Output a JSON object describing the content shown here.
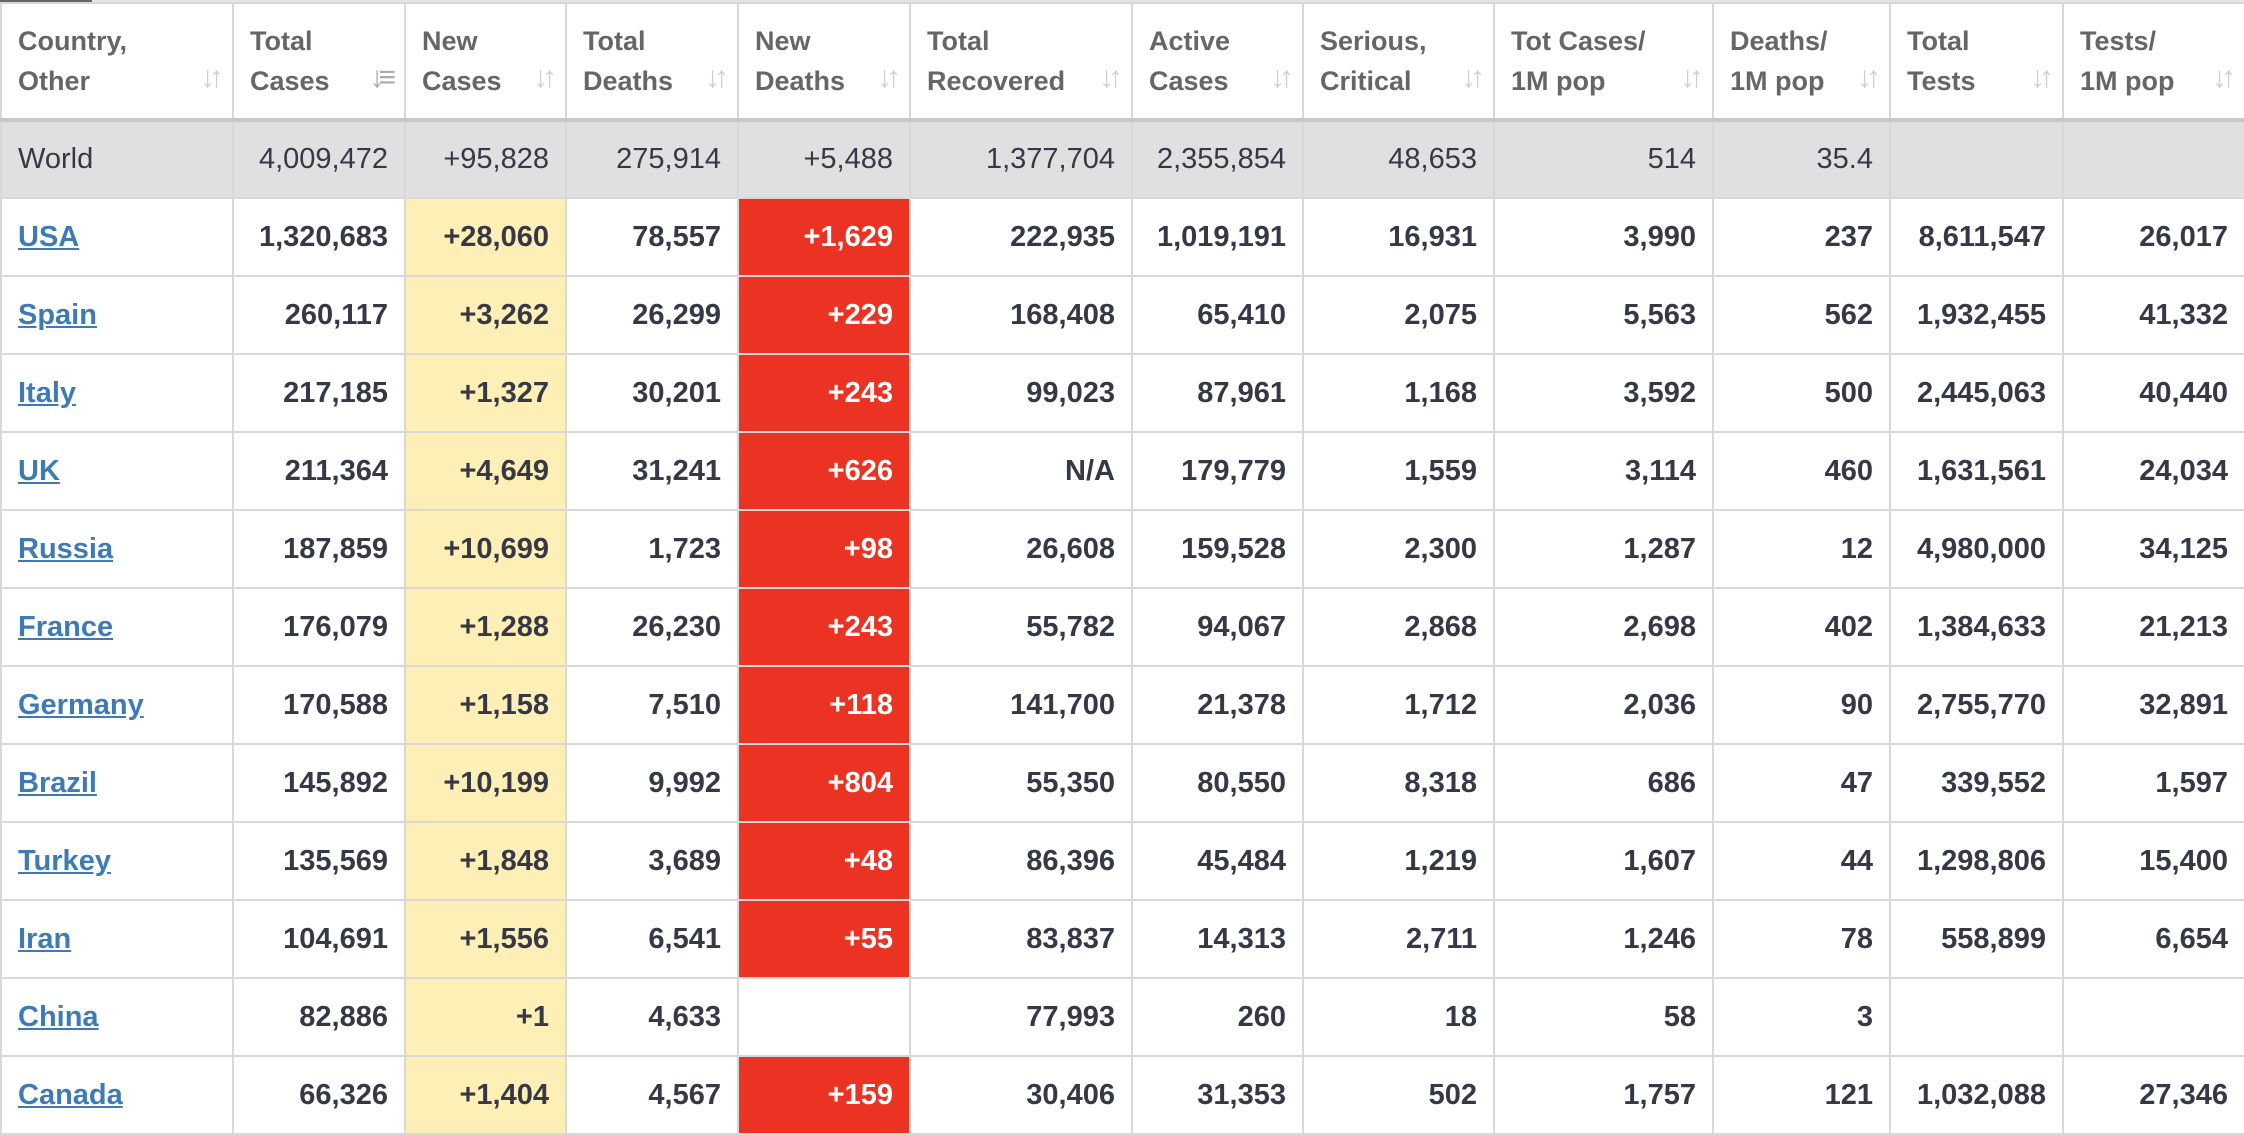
{
  "colors": {
    "new_cases_bg": "#fdefb5",
    "new_deaths_bg": "#ea3323",
    "link": "#3e7bb6",
    "world_bg": "#e0e0e0"
  },
  "headers": [
    {
      "l1": "Country,",
      "l2": "Other"
    },
    {
      "l1": "Total",
      "l2": "Cases",
      "sorted": true
    },
    {
      "l1": "New",
      "l2": "Cases"
    },
    {
      "l1": "Total",
      "l2": "Deaths"
    },
    {
      "l1": "New",
      "l2": "Deaths"
    },
    {
      "l1": "Total",
      "l2": "Recovered"
    },
    {
      "l1": "Active",
      "l2": "Cases"
    },
    {
      "l1": "Serious,",
      "l2": "Critical"
    },
    {
      "l1": "Tot Cases/",
      "l2": "1M pop"
    },
    {
      "l1": "Deaths/",
      "l2": "1M pop"
    },
    {
      "l1": "Total",
      "l2": "Tests"
    },
    {
      "l1": "Tests/",
      "l2": "1M pop"
    }
  ],
  "world": [
    "World",
    "4,009,472",
    "+95,828",
    "275,914",
    "+5,488",
    "1,377,704",
    "2,355,854",
    "48,653",
    "514",
    "35.4",
    "",
    ""
  ],
  "rows": [
    [
      "USA",
      "1,320,683",
      "+28,060",
      "78,557",
      "+1,629",
      "222,935",
      "1,019,191",
      "16,931",
      "3,990",
      "237",
      "8,611,547",
      "26,017"
    ],
    [
      "Spain",
      "260,117",
      "+3,262",
      "26,299",
      "+229",
      "168,408",
      "65,410",
      "2,075",
      "5,563",
      "562",
      "1,932,455",
      "41,332"
    ],
    [
      "Italy",
      "217,185",
      "+1,327",
      "30,201",
      "+243",
      "99,023",
      "87,961",
      "1,168",
      "3,592",
      "500",
      "2,445,063",
      "40,440"
    ],
    [
      "UK",
      "211,364",
      "+4,649",
      "31,241",
      "+626",
      "N/A",
      "179,779",
      "1,559",
      "3,114",
      "460",
      "1,631,561",
      "24,034"
    ],
    [
      "Russia",
      "187,859",
      "+10,699",
      "1,723",
      "+98",
      "26,608",
      "159,528",
      "2,300",
      "1,287",
      "12",
      "4,980,000",
      "34,125"
    ],
    [
      "France",
      "176,079",
      "+1,288",
      "26,230",
      "+243",
      "55,782",
      "94,067",
      "2,868",
      "2,698",
      "402",
      "1,384,633",
      "21,213"
    ],
    [
      "Germany",
      "170,588",
      "+1,158",
      "7,510",
      "+118",
      "141,700",
      "21,378",
      "1,712",
      "2,036",
      "90",
      "2,755,770",
      "32,891"
    ],
    [
      "Brazil",
      "145,892",
      "+10,199",
      "9,992",
      "+804",
      "55,350",
      "80,550",
      "8,318",
      "686",
      "47",
      "339,552",
      "1,597"
    ],
    [
      "Turkey",
      "135,569",
      "+1,848",
      "3,689",
      "+48",
      "86,396",
      "45,484",
      "1,219",
      "1,607",
      "44",
      "1,298,806",
      "15,400"
    ],
    [
      "Iran",
      "104,691",
      "+1,556",
      "6,541",
      "+55",
      "83,837",
      "14,313",
      "2,711",
      "1,246",
      "78",
      "558,899",
      "6,654"
    ],
    [
      "China",
      "82,886",
      "+1",
      "4,633",
      "",
      "77,993",
      "260",
      "18",
      "58",
      "3",
      "",
      ""
    ],
    [
      "Canada",
      "66,326",
      "+1,404",
      "4,567",
      "+159",
      "30,406",
      "31,353",
      "502",
      "1,757",
      "121",
      "1,032,088",
      "27,346"
    ]
  ]
}
